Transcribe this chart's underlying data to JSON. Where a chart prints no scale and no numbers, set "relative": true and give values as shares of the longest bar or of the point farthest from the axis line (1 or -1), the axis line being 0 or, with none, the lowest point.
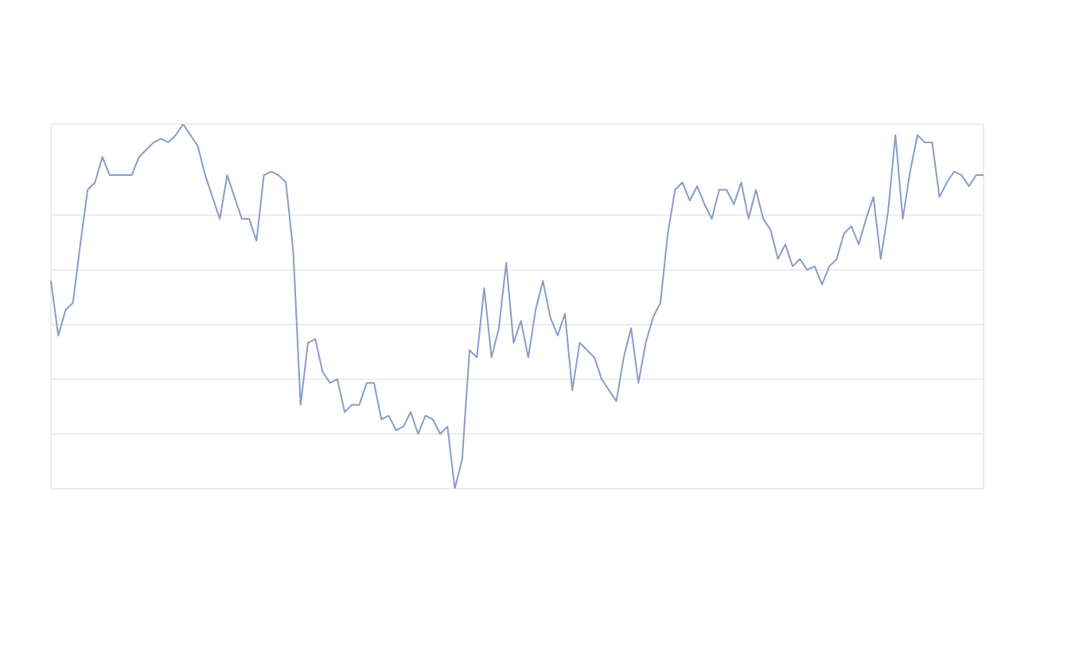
{
  "chart_data": {
    "type": "line",
    "relative": true,
    "grid": true,
    "legend": false,
    "marker": "none",
    "line_style": "solid",
    "categories": [
      null,
      null,
      null,
      null,
      null,
      null,
      null,
      null,
      null,
      null,
      null,
      null,
      null,
      null,
      null,
      null,
      null,
      null,
      null,
      null,
      null,
      null,
      null,
      null,
      null,
      null,
      null,
      null,
      null,
      null,
      null,
      null,
      null,
      null,
      null,
      null,
      null,
      null,
      null,
      null,
      null,
      null,
      null,
      null,
      null,
      null,
      null,
      null,
      null,
      null,
      null,
      null,
      null,
      null,
      null,
      null,
      null,
      null,
      null,
      null,
      null,
      null,
      null,
      null,
      null,
      null,
      null,
      null,
      null,
      null,
      null,
      null,
      null,
      null,
      null,
      null,
      null,
      null,
      null,
      null,
      null,
      null,
      null,
      null,
      null,
      null,
      null,
      null,
      null,
      null,
      null,
      null,
      null,
      null,
      null,
      null,
      null,
      null,
      null,
      null,
      null,
      null,
      null,
      null,
      null,
      null,
      null,
      null,
      null,
      null,
      null,
      null,
      null,
      null,
      null,
      null,
      null,
      null,
      null,
      null,
      null,
      null,
      null,
      null,
      null,
      null,
      null,
      null
    ],
    "series": [
      {
        "color": "#8a9cc8",
        "values": [
          0.57,
          0.42,
          0.49,
          0.51,
          0.67,
          0.82,
          0.84,
          0.91,
          0.86,
          0.86,
          0.86,
          0.86,
          0.91,
          0.93,
          0.95,
          0.96,
          0.95,
          0.97,
          1,
          0.97,
          0.94,
          0.86,
          0.8,
          0.74,
          0.86,
          0.8,
          0.74,
          0.74,
          0.68,
          0.86,
          0.87,
          0.86,
          0.84,
          0.65,
          0.23,
          0.4,
          0.41,
          0.32,
          0.29,
          0.3,
          0.21,
          0.23,
          0.23,
          0.29,
          0.29,
          0.19,
          0.2,
          0.16,
          0.17,
          0.21,
          0.15,
          0.2,
          0.19,
          0.15,
          0.17,
          0,
          0.08,
          0.38,
          0.36,
          0.55,
          0.36,
          0.44,
          0.62,
          0.4,
          0.46,
          0.36,
          0.49,
          0.57,
          0.47,
          0.42,
          0.48,
          0.27,
          0.4,
          0.38,
          0.36,
          0.3,
          0.27,
          0.24,
          0.36,
          0.44,
          0.29,
          0.4,
          0.47,
          0.51,
          0.7,
          0.82,
          0.84,
          0.79,
          0.83,
          0.78,
          0.74,
          0.82,
          0.82,
          0.78,
          0.84,
          0.74,
          0.82,
          0.74,
          0.71,
          0.63,
          0.67,
          0.61,
          0.63,
          0.6,
          0.61,
          0.56,
          0.61,
          0.63,
          0.7,
          0.72,
          0.67,
          0.74,
          0.8,
          0.63,
          0.76,
          0.97,
          0.74,
          0.87,
          0.97,
          0.95,
          0.95,
          0.8,
          0.84,
          0.87,
          0.86,
          0.83,
          0.86,
          0.86
        ]
      }
    ]
  }
}
